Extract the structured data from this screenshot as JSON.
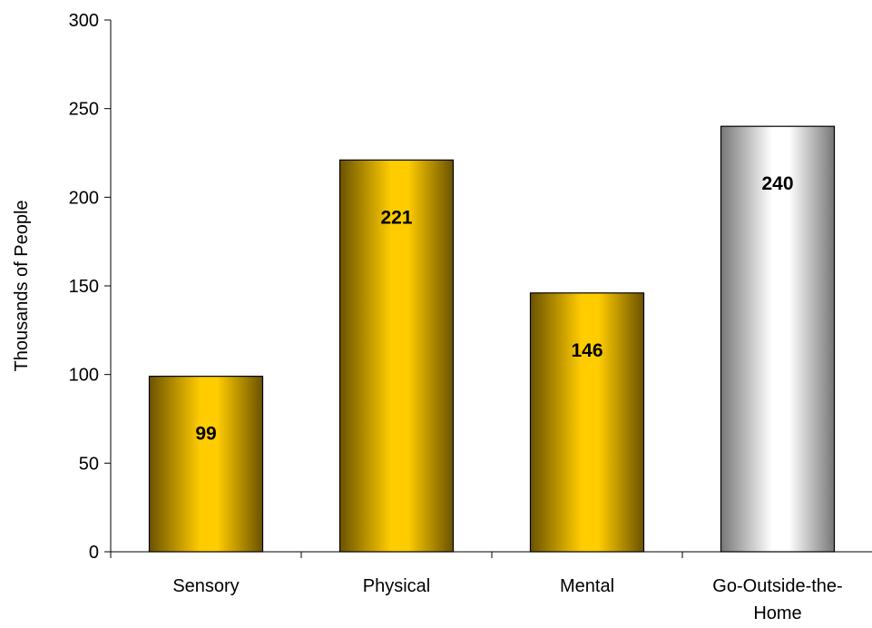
{
  "chart_data": {
    "type": "bar",
    "title": "",
    "xlabel": "",
    "ylabel": "Thousands of People",
    "ylim": [
      0,
      300
    ],
    "yticks": [
      0,
      50,
      100,
      150,
      200,
      250,
      300
    ],
    "grid": false,
    "legend": "none",
    "categories": [
      [
        "Sensory"
      ],
      [
        "Physical"
      ],
      [
        "Mental"
      ],
      [
        "Go-Outside-the-",
        "Home"
      ]
    ],
    "values": [
      99,
      221,
      146,
      240
    ],
    "data_labels": [
      "99",
      "221",
      "146",
      "240"
    ],
    "bar_styles": [
      "gold",
      "gold",
      "gold",
      "silver"
    ],
    "colors": {
      "gold_edge": "#6b5200",
      "gold_mid": "#ffcc00",
      "silver_edge": "#777777",
      "silver_mid": "#ffffff"
    }
  }
}
